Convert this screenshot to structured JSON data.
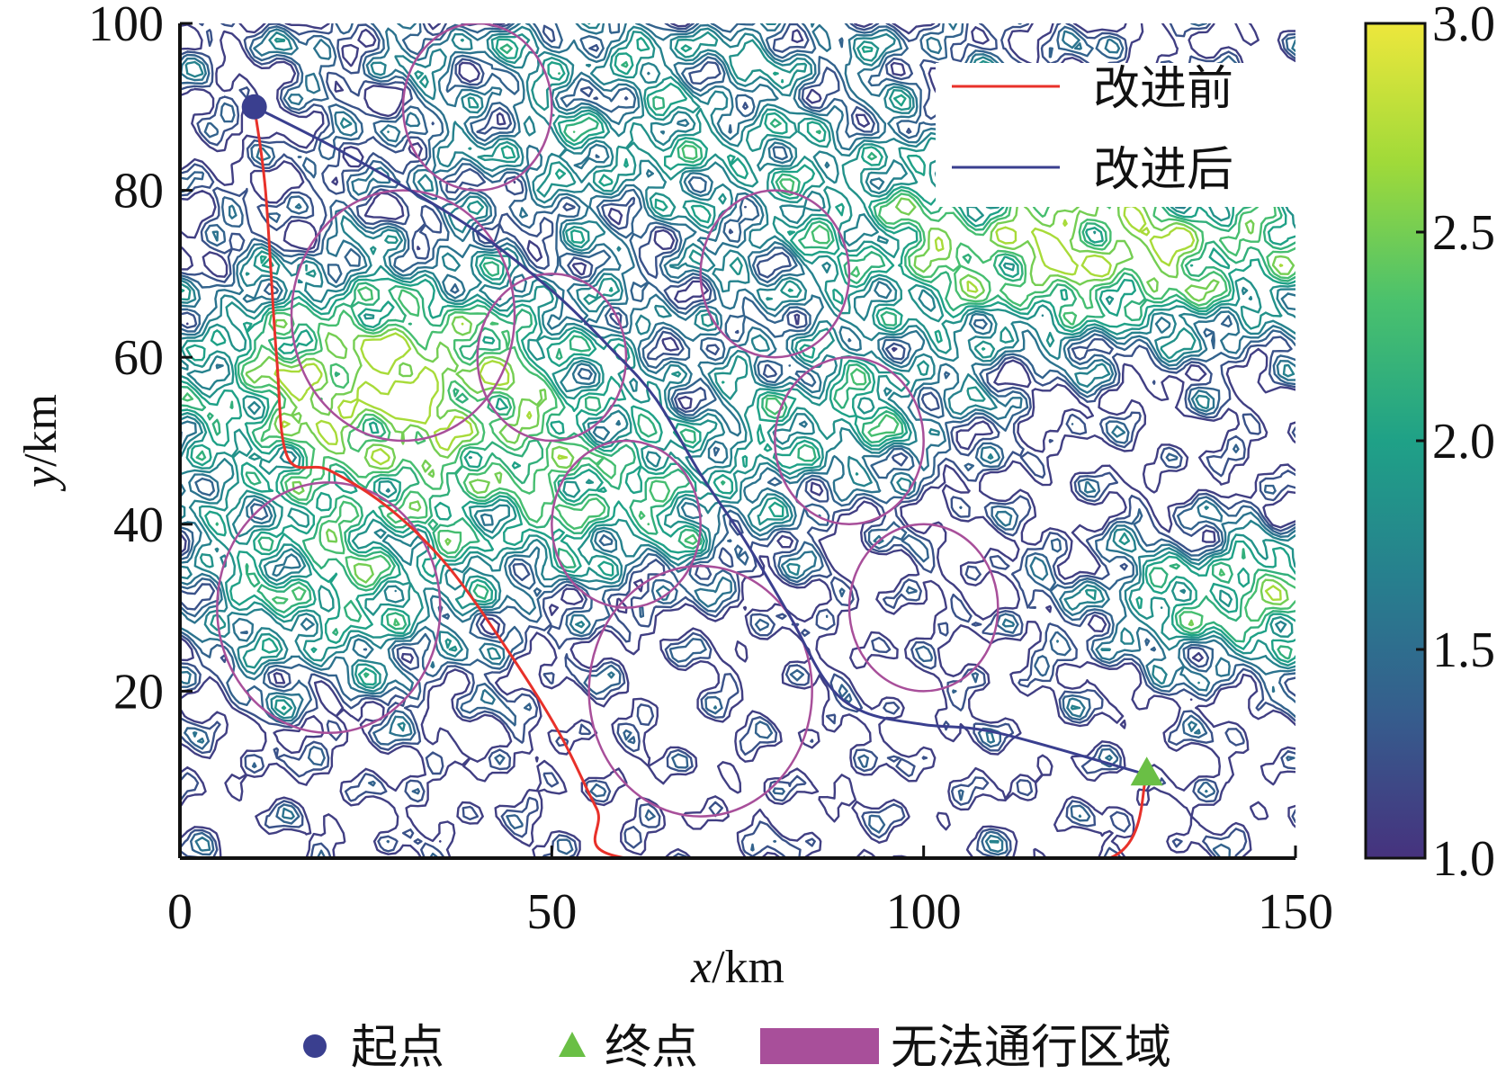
{
  "chart_data": {
    "type": "line",
    "title": "",
    "xlabel": {
      "var": "x",
      "unit": "/km"
    },
    "ylabel": {
      "var": "y",
      "unit": "/km"
    },
    "xlim": [
      0,
      150
    ],
    "ylim": [
      0,
      100
    ],
    "xticks": [
      0,
      50,
      100,
      150
    ],
    "yticks": [
      20,
      40,
      60,
      80,
      100
    ],
    "grid": false,
    "colorbar": {
      "range": [
        1.0,
        3.0
      ],
      "ticks": [
        "1.0",
        "1.5",
        "2.0",
        "2.5",
        "3.0"
      ],
      "colormap": [
        "#46327e",
        "#365c8d",
        "#277f8e",
        "#1fa187",
        "#4ac16d",
        "#a0da39",
        "#ede73c"
      ]
    },
    "contour_levels": [
      1.1,
      1.25,
      1.4,
      1.55,
      1.7,
      1.85,
      2.0,
      2.15,
      2.3,
      2.5,
      2.7
    ],
    "series": [
      {
        "name": "改进前",
        "color": "#e8312a",
        "points": [
          [
            10,
            90
          ],
          [
            11.5,
            80
          ],
          [
            13,
            60
          ],
          [
            14.5,
            48
          ],
          [
            20,
            46.5
          ],
          [
            28,
            42
          ],
          [
            36,
            35
          ],
          [
            44,
            25
          ],
          [
            51,
            15
          ],
          [
            56,
            6
          ],
          [
            60,
            0
          ],
          [
            100,
            0
          ],
          [
            125,
            0
          ],
          [
            130,
            10
          ]
        ]
      },
      {
        "name": "改进后",
        "color": "#3a3f8f",
        "points": [
          [
            10,
            90
          ],
          [
            20,
            85.5
          ],
          [
            30,
            80.5
          ],
          [
            40,
            75
          ],
          [
            50,
            68
          ],
          [
            58,
            61
          ],
          [
            64,
            55
          ],
          [
            70,
            46
          ],
          [
            76,
            38
          ],
          [
            82,
            29
          ],
          [
            87,
            21
          ],
          [
            92,
            17.5
          ],
          [
            100,
            16
          ],
          [
            110,
            15
          ],
          [
            130,
            10
          ]
        ]
      }
    ],
    "start_point": {
      "x": 10,
      "y": 90,
      "color": "#3a3f8f"
    },
    "end_point": {
      "x": 130,
      "y": 10,
      "color": "#6abf45"
    },
    "obstacles": {
      "color": "#a84f9a",
      "circles": [
        {
          "cx": 40,
          "cy": 90,
          "r": 10
        },
        {
          "cx": 30,
          "cy": 65,
          "r": 15
        },
        {
          "cx": 50,
          "cy": 60,
          "r": 10
        },
        {
          "cx": 80,
          "cy": 70,
          "r": 10
        },
        {
          "cx": 90,
          "cy": 50,
          "r": 10
        },
        {
          "cx": 60,
          "cy": 40,
          "r": 10
        },
        {
          "cx": 20,
          "cy": 30,
          "r": 15
        },
        {
          "cx": 70,
          "cy": 20,
          "r": 15
        },
        {
          "cx": 100,
          "cy": 30,
          "r": 10
        }
      ]
    },
    "legend": {
      "placement": "top-right",
      "entries": [
        {
          "label": "改进前",
          "color": "#e8312a"
        },
        {
          "label": "改进后",
          "color": "#3a3f8f"
        }
      ]
    },
    "bottom_legend": [
      {
        "label": "起点",
        "marker": "circle",
        "color": "#3a3f8f"
      },
      {
        "label": "终点",
        "marker": "triangle",
        "color": "#6abf45"
      },
      {
        "label": "无法通行区域",
        "marker": "rect",
        "color": "#a84f9a"
      }
    ]
  }
}
